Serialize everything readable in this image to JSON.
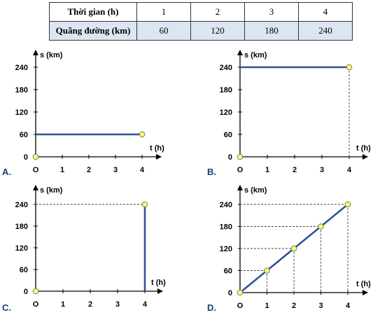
{
  "table": {
    "rows": [
      {
        "label": "Thời gian (h)",
        "values": [
          "1",
          "2",
          "3",
          "4"
        ]
      },
      {
        "label": "Quãng đường (km)",
        "values": [
          "60",
          "120",
          "180",
          "240"
        ]
      }
    ]
  },
  "chart_data": [
    {
      "type": "line",
      "option_label": "A.",
      "xlabel": "t (h)",
      "ylabel": "s (km)",
      "xlim": [
        0,
        4
      ],
      "ylim": [
        0,
        240
      ],
      "x_ticks": [
        "O",
        "1",
        "2",
        "3",
        "4"
      ],
      "y_ticks": [
        "0",
        "60",
        "120",
        "180",
        "240"
      ],
      "points": [
        [
          0,
          0
        ],
        [
          4,
          60
        ]
      ],
      "segments": [
        [
          [
            0,
            60
          ],
          [
            4,
            60
          ]
        ]
      ],
      "guides": [],
      "line_color": "#2e5597",
      "marker_color": "#ffff66"
    },
    {
      "type": "line",
      "option_label": "B.",
      "xlabel": "t (h)",
      "ylabel": "s (km)",
      "xlim": [
        0,
        4
      ],
      "ylim": [
        0,
        240
      ],
      "x_ticks": [
        "O",
        "1",
        "2",
        "3",
        "4"
      ],
      "y_ticks": [
        "0",
        "60",
        "120",
        "180",
        "240"
      ],
      "points": [
        [
          0,
          0
        ],
        [
          4,
          240
        ]
      ],
      "segments": [
        [
          [
            0,
            240
          ],
          [
            4,
            240
          ]
        ]
      ],
      "guides": [
        [
          [
            4,
            240
          ],
          [
            4,
            0
          ]
        ]
      ],
      "line_color": "#2e5597",
      "marker_color": "#ffff66"
    },
    {
      "type": "line",
      "option_label": "C.",
      "xlabel": "t (h)",
      "ylabel": "s (km)",
      "xlim": [
        0,
        4
      ],
      "ylim": [
        0,
        240
      ],
      "x_ticks": [
        "O",
        "1",
        "2",
        "3",
        "4"
      ],
      "y_ticks": [
        "0",
        "60",
        "120",
        "180",
        "240"
      ],
      "points": [
        [
          0,
          0
        ],
        [
          4,
          240
        ]
      ],
      "segments": [
        [
          [
            4,
            0
          ],
          [
            4,
            240
          ]
        ]
      ],
      "guides": [
        [
          [
            0,
            240
          ],
          [
            4,
            240
          ]
        ]
      ],
      "line_color": "#2e5597",
      "marker_color": "#ffff66"
    },
    {
      "type": "line",
      "option_label": "D.",
      "xlabel": "t (h)",
      "ylabel": "s (km)",
      "xlim": [
        0,
        4
      ],
      "ylim": [
        0,
        240
      ],
      "x_ticks": [
        "O",
        "1",
        "2",
        "3",
        "4"
      ],
      "y_ticks": [
        "0",
        "60",
        "120",
        "180",
        "240"
      ],
      "points": [
        [
          0,
          0
        ],
        [
          1,
          60
        ],
        [
          2,
          120
        ],
        [
          3,
          180
        ],
        [
          4,
          240
        ]
      ],
      "segments": [
        [
          [
            0,
            0
          ],
          [
            4,
            240
          ]
        ]
      ],
      "guides": [
        [
          [
            0,
            60
          ],
          [
            1,
            60
          ]
        ],
        [
          [
            1,
            60
          ],
          [
            1,
            0
          ]
        ],
        [
          [
            0,
            120
          ],
          [
            2,
            120
          ]
        ],
        [
          [
            2,
            120
          ],
          [
            2,
            0
          ]
        ],
        [
          [
            0,
            180
          ],
          [
            3,
            180
          ]
        ],
        [
          [
            3,
            180
          ],
          [
            3,
            0
          ]
        ],
        [
          [
            0,
            240
          ],
          [
            4,
            240
          ]
        ],
        [
          [
            4,
            240
          ],
          [
            4,
            0
          ]
        ]
      ],
      "line_color": "#2e5597",
      "marker_color": "#ffff66"
    }
  ]
}
